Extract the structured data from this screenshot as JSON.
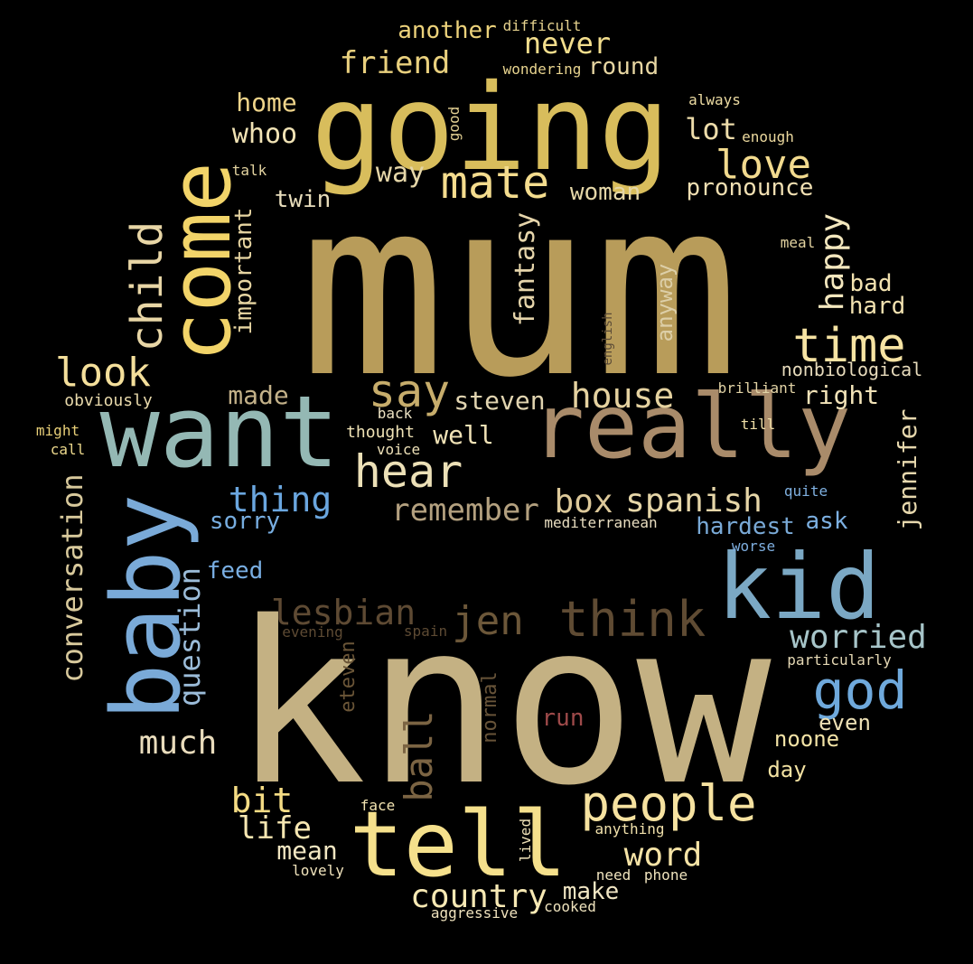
{
  "words": [
    {
      "text": "mum",
      "color": "#b89c5a",
      "orient": "h"
    },
    {
      "text": "know",
      "color": "#c4b183",
      "orient": "h"
    },
    {
      "text": "going",
      "color": "#d8bd5c",
      "orient": "h"
    },
    {
      "text": "want",
      "color": "#94b8b4",
      "orient": "h"
    },
    {
      "text": "really",
      "color": "#a98b6a",
      "orient": "h"
    },
    {
      "text": "baby",
      "color": "#7aaad8",
      "orient": "v"
    },
    {
      "text": "come",
      "color": "#f2d469",
      "orient": "v"
    },
    {
      "text": "tell",
      "color": "#f5e08c",
      "orient": "h"
    },
    {
      "text": "kid",
      "color": "#7ba8c4",
      "orient": "h"
    },
    {
      "text": "people",
      "color": "#f6e2a0",
      "orient": "h"
    },
    {
      "text": "think",
      "color": "#5f4b33",
      "orient": "h"
    },
    {
      "text": "jen",
      "color": "#6c5739",
      "orient": "h"
    },
    {
      "text": "lesbian",
      "color": "#5e4a33",
      "orient": "h"
    },
    {
      "text": "hear",
      "color": "#ece0b7",
      "orient": "h"
    },
    {
      "text": "mate",
      "color": "#f4dc8e",
      "orient": "h"
    },
    {
      "text": "time",
      "color": "#f6e3a3",
      "orient": "h"
    },
    {
      "text": "love",
      "color": "#f2da8e",
      "orient": "h"
    },
    {
      "text": "child",
      "color": "#e8d6a6",
      "orient": "v"
    },
    {
      "text": "look",
      "color": "#f4df9b",
      "orient": "h"
    },
    {
      "text": "say",
      "color": "#c7ad6c",
      "orient": "h"
    },
    {
      "text": "house",
      "color": "#e5d2a0",
      "orient": "h"
    },
    {
      "text": "god",
      "color": "#6fa9dc",
      "orient": "h"
    },
    {
      "text": "worried",
      "color": "#a7c5c9",
      "orient": "h"
    },
    {
      "text": "conversation",
      "color": "#d8c99c",
      "orient": "v"
    },
    {
      "text": "question",
      "color": "#9bbcd9",
      "orient": "v"
    },
    {
      "text": "thing",
      "color": "#6aa6df",
      "orient": "h"
    },
    {
      "text": "spanish",
      "color": "#e6d6a8",
      "orient": "h"
    },
    {
      "text": "remember",
      "color": "#b3a07f",
      "orient": "h"
    },
    {
      "text": "box",
      "color": "#ddc99a",
      "orient": "h"
    },
    {
      "text": "ball",
      "color": "#7b6443",
      "orient": "v"
    },
    {
      "text": "much",
      "color": "#e9dcbc",
      "orient": "h"
    },
    {
      "text": "word",
      "color": "#f5e3a6",
      "orient": "h"
    },
    {
      "text": "country",
      "color": "#f7e9b4",
      "orient": "h"
    },
    {
      "text": "bit",
      "color": "#f5dc84",
      "orient": "h"
    },
    {
      "text": "life",
      "color": "#f7e7b2",
      "orient": "h"
    },
    {
      "text": "mean",
      "color": "#f2e6c2",
      "orient": "h"
    },
    {
      "text": "friend",
      "color": "#e9d07e",
      "orient": "h"
    },
    {
      "text": "never",
      "color": "#f3de8d",
      "orient": "h"
    },
    {
      "text": "another",
      "color": "#ecd27b",
      "orient": "h"
    },
    {
      "text": "round",
      "color": "#e7d6a2",
      "orient": "h"
    },
    {
      "text": "home",
      "color": "#efd48a",
      "orient": "h"
    },
    {
      "text": "whoo",
      "color": "#f1e3b5",
      "orient": "h"
    },
    {
      "text": "lot",
      "color": "#eddcaa",
      "orient": "h"
    },
    {
      "text": "way",
      "color": "#e5d6a8",
      "orient": "h"
    },
    {
      "text": "twin",
      "color": "#e8ddbb",
      "orient": "h"
    },
    {
      "text": "woman",
      "color": "#e5d7a8",
      "orient": "h"
    },
    {
      "text": "pronounce",
      "color": "#f0dfb2",
      "orient": "h"
    },
    {
      "text": "important",
      "color": "#e7d5a2",
      "orient": "v"
    },
    {
      "text": "fantasy",
      "color": "#e6d5ab",
      "orient": "v"
    },
    {
      "text": "happy",
      "color": "#f3e7be",
      "orient": "v"
    },
    {
      "text": "anyway",
      "color": "#ddcfa8",
      "orient": "v"
    },
    {
      "text": "bad",
      "color": "#f2e2b0",
      "orient": "h"
    },
    {
      "text": "hard",
      "color": "#f2e2b0",
      "orient": "h"
    },
    {
      "text": "made",
      "color": "#c3b189",
      "orient": "h"
    },
    {
      "text": "steven",
      "color": "#e1d4b0",
      "orient": "h"
    },
    {
      "text": "well",
      "color": "#f0e2b6",
      "orient": "h"
    },
    {
      "text": "right",
      "color": "#f2e3b8",
      "orient": "h"
    },
    {
      "text": "jennifer",
      "color": "#e6d7ad",
      "orient": "v"
    },
    {
      "text": "nonbiological",
      "color": "#e7dbbc",
      "orient": "h"
    },
    {
      "text": "sorry",
      "color": "#77ade0",
      "orient": "h"
    },
    {
      "text": "hardest",
      "color": "#79a9d6",
      "orient": "h"
    },
    {
      "text": "ask",
      "color": "#7cb0e2",
      "orient": "h"
    },
    {
      "text": "feed",
      "color": "#79aee2",
      "orient": "h"
    },
    {
      "text": "even",
      "color": "#eee1b6",
      "orient": "h"
    },
    {
      "text": "noone",
      "color": "#f3e3a6",
      "orient": "h"
    },
    {
      "text": "day",
      "color": "#f3e2a2",
      "orient": "h"
    },
    {
      "text": "make",
      "color": "#f0e5c3",
      "orient": "h"
    },
    {
      "text": "run",
      "color": "#9e4a4a",
      "orient": "h"
    },
    {
      "text": "normal",
      "color": "#675338",
      "orient": "v"
    },
    {
      "text": "eteven",
      "color": "#6a5537",
      "orient": "v"
    },
    {
      "text": "difficult",
      "color": "#e6d28e",
      "orient": "h"
    },
    {
      "text": "wondering",
      "color": "#e8d48f",
      "orient": "h"
    },
    {
      "text": "always",
      "color": "#ecdba2",
      "orient": "h"
    },
    {
      "text": "good",
      "color": "#e2cf92",
      "orient": "v"
    },
    {
      "text": "enough",
      "color": "#ecd99e",
      "orient": "h"
    },
    {
      "text": "talk",
      "color": "#e3d3a0",
      "orient": "h"
    },
    {
      "text": "meal",
      "color": "#e3d3a0",
      "orient": "h"
    },
    {
      "text": "english",
      "color": "#5a4a36",
      "orient": "v"
    },
    {
      "text": "brilliant",
      "color": "#e3d4a6",
      "orient": "h"
    },
    {
      "text": "obviously",
      "color": "#e8d9ab",
      "orient": "h"
    },
    {
      "text": "might",
      "color": "#e8cf78",
      "orient": "h"
    },
    {
      "text": "call",
      "color": "#ecd88c",
      "orient": "h"
    },
    {
      "text": "back",
      "color": "#ede3c4",
      "orient": "h"
    },
    {
      "text": "thought",
      "color": "#f0e3b6",
      "orient": "h"
    },
    {
      "text": "voice",
      "color": "#eee1b8",
      "orient": "h"
    },
    {
      "text": "till",
      "color": "#f0dfa8",
      "orient": "h"
    },
    {
      "text": "quite",
      "color": "#7fb0e0",
      "orient": "h"
    },
    {
      "text": "mediterranean",
      "color": "#e8ddc0",
      "orient": "h"
    },
    {
      "text": "worse",
      "color": "#7eaedf",
      "orient": "h"
    },
    {
      "text": "evening",
      "color": "#5d4a33",
      "orient": "h"
    },
    {
      "text": "spain",
      "color": "#5d4a33",
      "orient": "h"
    },
    {
      "text": "particularly",
      "color": "#e5d8b4",
      "orient": "h"
    },
    {
      "text": "face",
      "color": "#f2e3b1",
      "orient": "h"
    },
    {
      "text": "anything",
      "color": "#f0e0ab",
      "orient": "h"
    },
    {
      "text": "lived",
      "color": "#ede0b6",
      "orient": "v"
    },
    {
      "text": "lovely",
      "color": "#f1e4bd",
      "orient": "h"
    },
    {
      "text": "need",
      "color": "#efe3bd",
      "orient": "h"
    },
    {
      "text": "phone",
      "color": "#efe3bd",
      "orient": "h"
    },
    {
      "text": "cooked",
      "color": "#eee2bd",
      "orient": "h"
    },
    {
      "text": "aggressive",
      "color": "#efe2bd",
      "orient": "h"
    }
  ]
}
